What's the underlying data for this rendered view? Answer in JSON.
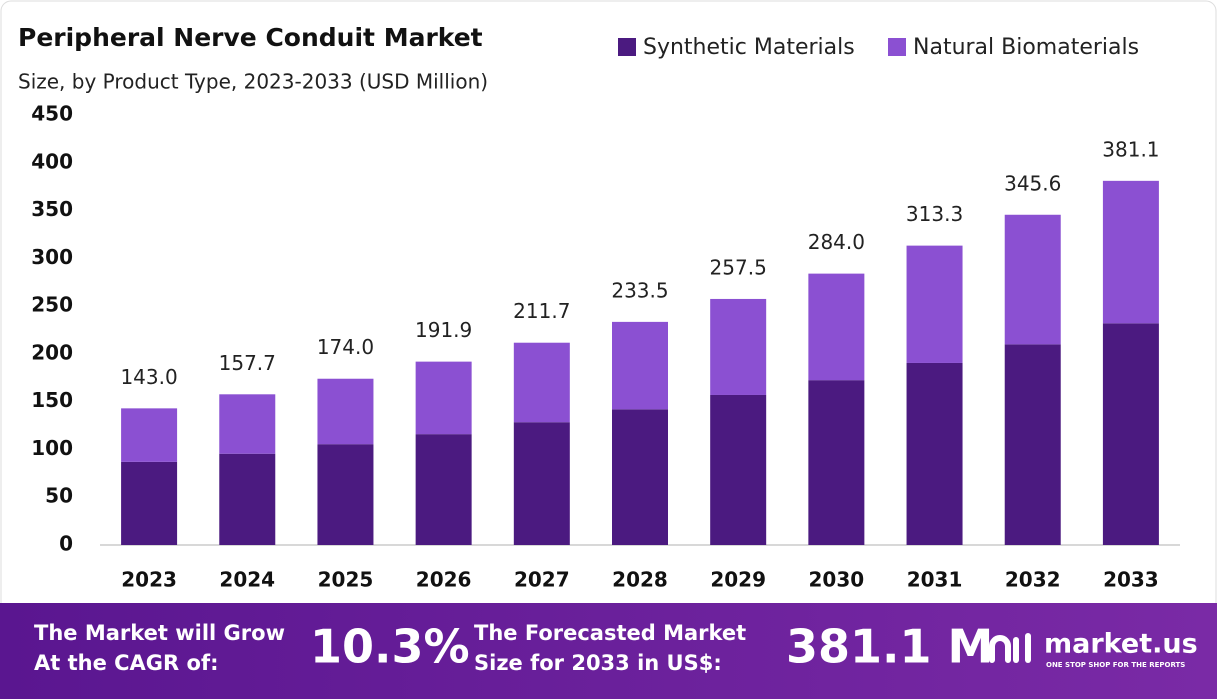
{
  "chart_data": {
    "type": "stacked-bar",
    "title": "Peripheral Nerve Conduit Market",
    "subtitle": "Size, by Product Type, 2023-2033 (USD Million)",
    "categories": [
      "2023",
      "2024",
      "2025",
      "2026",
      "2027",
      "2028",
      "2029",
      "2030",
      "2031",
      "2032",
      "2033"
    ],
    "series": [
      {
        "name": "Synthetic Materials",
        "color": "#4b1a80",
        "values": [
          87,
          95.5,
          105.5,
          116,
          128.5,
          142,
          157,
          172.5,
          190.5,
          210,
          232
        ]
      },
      {
        "name": "Natural Biomaterials",
        "color": "#8b50d2",
        "values": [
          56,
          62.2,
          68.5,
          75.9,
          83.2,
          91.5,
          100.5,
          111.5,
          122.8,
          135.6,
          149.1
        ]
      }
    ],
    "totals": [
      143,
      157.7,
      174,
      191.9,
      211.7,
      233.5,
      257.5,
      284,
      313.3,
      345.6,
      381.1
    ],
    "total_labels": [
      "143.0",
      "157.7",
      "174.0",
      "191.9",
      "211.7",
      "233.5",
      "257.5",
      "284.0",
      "313.3",
      "345.6",
      "381.1"
    ],
    "ylim": [
      0,
      450
    ],
    "yticks": [
      0,
      50,
      100,
      150,
      200,
      250,
      300,
      350,
      400,
      450
    ],
    "grid": false,
    "legend": "top-right"
  },
  "footer": {
    "cagr_text_1": "The Market will Grow",
    "cagr_text_2": "At the CAGR of:",
    "cagr_value": "10.3%",
    "forecast_text_1": "The Forecasted Market",
    "forecast_text_2": "Size for 2033 in US$:",
    "forecast_value": "381.1 M",
    "logo": "market.us",
    "tagline": "ONE STOP SHOP FOR THE REPORTS"
  }
}
